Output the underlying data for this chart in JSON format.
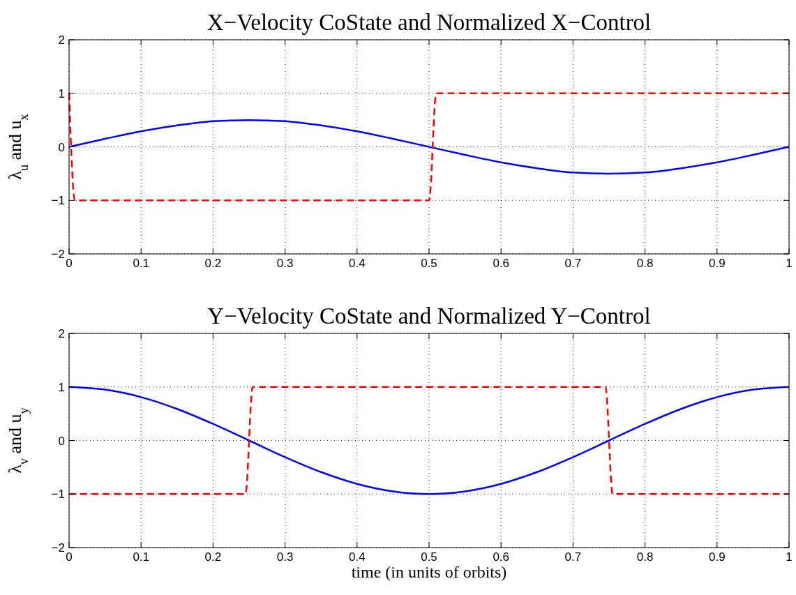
{
  "chart_data": [
    {
      "type": "line",
      "title": "X−Velocity CoState and Normalized X−Control",
      "ylabel": "λ$_{u}$ and u$_{x}$",
      "xlim": [
        0,
        1
      ],
      "ylim": [
        -2,
        2
      ],
      "xticks": [
        0,
        0.1,
        0.2,
        0.3,
        0.4,
        0.5,
        0.6,
        0.7,
        0.8,
        0.9,
        1
      ],
      "yticks": [
        -2,
        -1,
        0,
        1,
        2
      ],
      "grid": true,
      "series": [
        {
          "color": "#0000ff",
          "line_style": "solid",
          "x": [
            0,
            0.05,
            0.1,
            0.15,
            0.2,
            0.25,
            0.3,
            0.35,
            0.4,
            0.45,
            0.5,
            0.55,
            0.6,
            0.65,
            0.7,
            0.75,
            0.8,
            0.85,
            0.9,
            0.95,
            1
          ],
          "values": [
            0,
            0.15,
            0.29,
            0.4,
            0.48,
            0.5,
            0.48,
            0.4,
            0.29,
            0.15,
            0,
            -0.15,
            -0.29,
            -0.4,
            -0.48,
            -0.5,
            -0.48,
            -0.4,
            -0.29,
            -0.15,
            0
          ]
        },
        {
          "color": "#ff0000",
          "line_style": "dashed",
          "x": [
            0,
            0.008,
            0.5,
            0.51,
            1
          ],
          "values": [
            1,
            -1,
            -1,
            1,
            1
          ]
        }
      ]
    },
    {
      "type": "line",
      "title": "Y−Velocity CoState and Normalized Y−Control",
      "ylabel": "λ$_{v}$ and u$_{y}$",
      "xlabel": "time (in units of orbits)",
      "xlim": [
        0,
        1
      ],
      "ylim": [
        -2,
        2
      ],
      "xticks": [
        0,
        0.1,
        0.2,
        0.3,
        0.4,
        0.5,
        0.6,
        0.7,
        0.8,
        0.9,
        1
      ],
      "yticks": [
        -2,
        -1,
        0,
        1,
        2
      ],
      "grid": true,
      "series": [
        {
          "color": "#0000ff",
          "line_style": "solid",
          "x": [
            0,
            0.05,
            0.1,
            0.15,
            0.2,
            0.25,
            0.3,
            0.35,
            0.4,
            0.45,
            0.5,
            0.55,
            0.6,
            0.65,
            0.7,
            0.75,
            0.8,
            0.85,
            0.9,
            0.95,
            1
          ],
          "values": [
            1,
            0.95,
            0.81,
            0.59,
            0.31,
            0,
            -0.31,
            -0.59,
            -0.81,
            -0.95,
            -1,
            -0.95,
            -0.81,
            -0.59,
            -0.31,
            0,
            0.31,
            0.59,
            0.81,
            0.95,
            1
          ]
        },
        {
          "color": "#ff0000",
          "line_style": "dashed",
          "x": [
            0,
            0.245,
            0.255,
            0.745,
            0.755,
            1
          ],
          "values": [
            -1,
            -1,
            1,
            1,
            -1,
            -1
          ]
        }
      ]
    }
  ]
}
